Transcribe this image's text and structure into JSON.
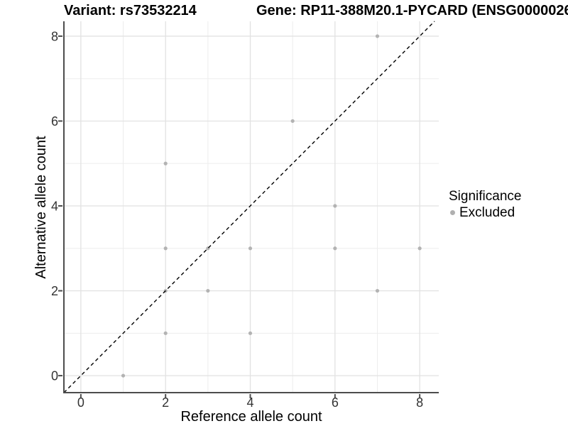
{
  "chart_data": {
    "type": "scatter",
    "title_left": "Variant: rs73532214",
    "title_right": "Gene: RP11-388M20.1-PYCARD (ENSG0000026",
    "xlabel": "Reference allele count",
    "ylabel": "Alternative allele count",
    "x_ticks": [
      0,
      2,
      4,
      6,
      8
    ],
    "y_ticks": [
      0,
      2,
      4,
      6,
      8
    ],
    "x_minor_ticks": [
      1,
      3,
      5,
      7
    ],
    "y_minor_ticks": [
      1,
      3,
      5,
      7
    ],
    "xlim": [
      -0.4,
      8.45
    ],
    "ylim": [
      -0.4,
      8.35
    ],
    "grid": true,
    "points": [
      {
        "x": 1,
        "y": 0
      },
      {
        "x": 2,
        "y": 1
      },
      {
        "x": 4,
        "y": 1
      },
      {
        "x": 2,
        "y": 2
      },
      {
        "x": 3,
        "y": 2
      },
      {
        "x": 7,
        "y": 2
      },
      {
        "x": 2,
        "y": 3
      },
      {
        "x": 3,
        "y": 3
      },
      {
        "x": 4,
        "y": 3
      },
      {
        "x": 6,
        "y": 3
      },
      {
        "x": 8,
        "y": 3
      },
      {
        "x": 6,
        "y": 4
      },
      {
        "x": 2,
        "y": 5
      },
      {
        "x": 5,
        "y": 6
      },
      {
        "x": 7,
        "y": 8
      }
    ],
    "identity_line": {
      "slope": 1,
      "intercept": 0,
      "style": "dashed",
      "color": "#000000"
    },
    "point_color": "#b3b3b3",
    "legend": {
      "title": "Significance",
      "position": "right",
      "items": [
        {
          "label": "Excluded",
          "color": "#b0b0b0"
        }
      ]
    },
    "colors": {
      "grid_major": "#e2e2e2",
      "grid_minor": "#ededed",
      "axis_line": "#4d4d4d",
      "tick_label": "#333333"
    }
  }
}
